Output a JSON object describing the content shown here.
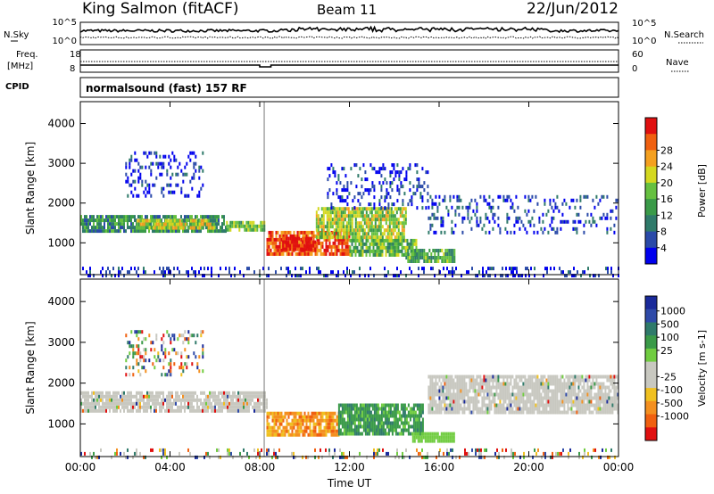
{
  "header": {
    "station": "King Salmon (fitACF)",
    "beam": "Beam 11",
    "date": "22/Jun/2012"
  },
  "noise_panel": {
    "left_label": "N.Sky",
    "left_ticks": [
      "10^5",
      "10^0"
    ],
    "right_label": "N.Search",
    "right_ticks": [
      "10^5",
      "10^0"
    ]
  },
  "freq_panel": {
    "left_label_line1": "Freq.",
    "left_label_line2": "[MHz]",
    "left_ticks": [
      "18",
      "8"
    ],
    "right_label": "Nave",
    "right_ticks": [
      "60",
      "0"
    ]
  },
  "cpid": {
    "label": "CPID",
    "value": "normalsound (fast) 157 RF"
  },
  "chart_data": [
    {
      "type": "heatmap",
      "panel": "power",
      "ylabel": "Slant Range [km]",
      "ylim": [
        200,
        4550
      ],
      "yticks": [
        1000,
        2000,
        3000,
        4000
      ],
      "xlim": [
        0,
        24
      ],
      "xticks": [
        "00:00",
        "04:00",
        "08:00",
        "12:00",
        "16:00",
        "20:00",
        "00:00"
      ],
      "colorbar": {
        "label": "Power [dB]",
        "ticks": [
          "4",
          "8",
          "12",
          "16",
          "20",
          "24",
          "28"
        ],
        "colors": [
          "#0000ee",
          "#2a4aa8",
          "#2f7a6a",
          "#3a9a48",
          "#66c040",
          "#d4d820",
          "#f4a020",
          "#f06010",
          "#e01010"
        ]
      },
      "bands": [
        {
          "t0": 0.0,
          "t1": 6.5,
          "r0": 1300,
          "r1": 1700,
          "level": 0.35
        },
        {
          "t0": 2.5,
          "t1": 6.0,
          "r0": 1400,
          "r1": 1600,
          "level": 0.6
        },
        {
          "t0": 6.5,
          "t1": 8.2,
          "r0": 1300,
          "r1": 1550,
          "level": 0.5
        },
        {
          "t0": 8.3,
          "t1": 12.0,
          "r0": 700,
          "r1": 1300,
          "level": 0.85
        },
        {
          "t0": 9.0,
          "t1": 10.5,
          "r0": 850,
          "r1": 1150,
          "level": 1.0
        },
        {
          "t0": 10.5,
          "t1": 14.5,
          "r0": 1100,
          "r1": 1900,
          "level": 0.55
        },
        {
          "t0": 12.0,
          "t1": 15.0,
          "r0": 700,
          "r1": 1100,
          "level": 0.45
        },
        {
          "t0": 14.5,
          "t1": 16.7,
          "r0": 550,
          "r1": 850,
          "level": 0.4
        },
        {
          "t0": 15.5,
          "t1": 24.0,
          "r0": 1300,
          "r1": 2200,
          "level": 0.15
        },
        {
          "t0": 2.0,
          "t1": 5.5,
          "r0": 2200,
          "r1": 3300,
          "level": 0.1
        },
        {
          "t0": 11.0,
          "t1": 15.5,
          "r0": 1900,
          "r1": 3000,
          "level": 0.12
        },
        {
          "t0": 0.0,
          "t1": 24.0,
          "r0": 200,
          "r1": 400,
          "level": 0.08
        }
      ]
    },
    {
      "type": "heatmap",
      "panel": "velocity",
      "ylabel": "Slant Range [km]",
      "ylim": [
        200,
        4550
      ],
      "yticks": [
        1000,
        2000,
        3000,
        4000
      ],
      "xlim": [
        0,
        24
      ],
      "xlabel": "Time UT",
      "xticks": [
        "00:00",
        "04:00",
        "08:00",
        "12:00",
        "16:00",
        "20:00",
        "00:00"
      ],
      "colorbar": {
        "label": "Velocity [m s-1]",
        "ticks": [
          "1000",
          "500",
          "100",
          "25",
          "-25",
          "-100",
          "-500",
          "-1000"
        ],
        "colors": [
          "#1a2a9a",
          "#2f4aa8",
          "#2f7a6a",
          "#3a9a48",
          "#70cc40",
          "#c8c8c0",
          "#c8c8c0",
          "#f0c020",
          "#f49020",
          "#f06010",
          "#e01010"
        ]
      },
      "bands": [
        {
          "t0": 0.0,
          "t1": 8.3,
          "r0": 1300,
          "r1": 1800,
          "kind": "gray"
        },
        {
          "t0": 8.3,
          "t1": 11.5,
          "r0": 700,
          "r1": 1300,
          "kind": "orange"
        },
        {
          "t0": 11.5,
          "t1": 15.3,
          "r0": 800,
          "r1": 1500,
          "kind": "green"
        },
        {
          "t0": 14.8,
          "t1": 16.7,
          "r0": 550,
          "r1": 800,
          "kind": "lightgreen"
        },
        {
          "t0": 15.5,
          "t1": 24.0,
          "r0": 1300,
          "r1": 2200,
          "kind": "gray"
        },
        {
          "t0": 2.0,
          "t1": 5.5,
          "r0": 2200,
          "r1": 3300,
          "kind": "mixed"
        },
        {
          "t0": 0.0,
          "t1": 24.0,
          "r0": 200,
          "r1": 400,
          "kind": "mixed"
        }
      ]
    }
  ]
}
